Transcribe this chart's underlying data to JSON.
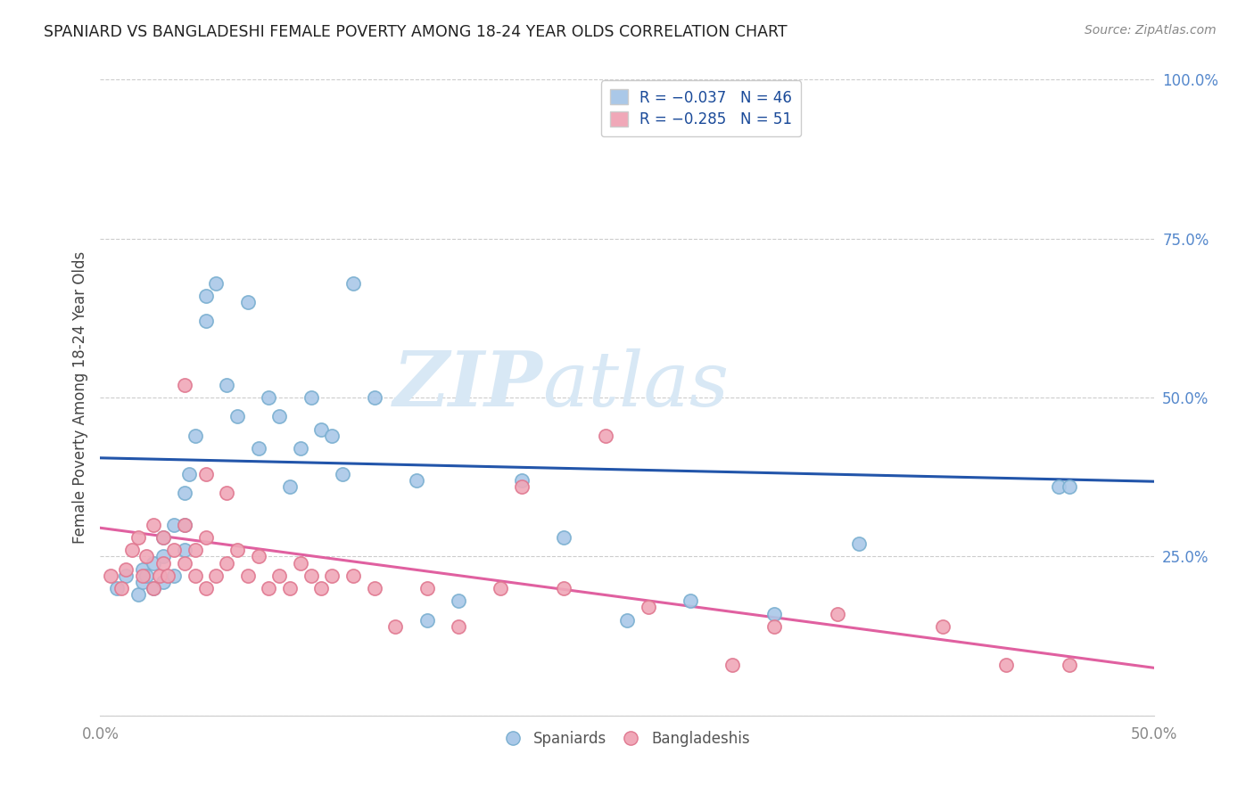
{
  "title": "SPANIARD VS BANGLADESHI FEMALE POVERTY AMONG 18-24 YEAR OLDS CORRELATION CHART",
  "source": "Source: ZipAtlas.com",
  "ylabel": "Female Poverty Among 18-24 Year Olds",
  "xlim": [
    0.0,
    0.5
  ],
  "ylim": [
    0.0,
    1.0
  ],
  "spaniard_color": "#aac8e8",
  "spaniard_edge_color": "#7aafd0",
  "bangladeshi_color": "#f0a8b8",
  "bangladeshi_edge_color": "#e07890",
  "spaniard_line_color": "#2255aa",
  "bangladeshi_line_color": "#e060a0",
  "watermark_color": "#d8e8f5",
  "spaniard_line_start": 0.405,
  "spaniard_line_end": 0.368,
  "bangladeshi_line_start": 0.295,
  "bangladeshi_line_end": 0.075,
  "spaniard_x": [
    0.008,
    0.012,
    0.018,
    0.02,
    0.02,
    0.022,
    0.025,
    0.025,
    0.03,
    0.03,
    0.03,
    0.035,
    0.035,
    0.04,
    0.04,
    0.04,
    0.042,
    0.045,
    0.05,
    0.05,
    0.055,
    0.06,
    0.065,
    0.07,
    0.075,
    0.08,
    0.085,
    0.09,
    0.095,
    0.1,
    0.105,
    0.11,
    0.115,
    0.12,
    0.13,
    0.15,
    0.155,
    0.17,
    0.2,
    0.22,
    0.25,
    0.28,
    0.32,
    0.36,
    0.455,
    0.46
  ],
  "spaniard_y": [
    0.2,
    0.22,
    0.19,
    0.21,
    0.23,
    0.22,
    0.2,
    0.24,
    0.21,
    0.25,
    0.28,
    0.22,
    0.3,
    0.26,
    0.3,
    0.35,
    0.38,
    0.44,
    0.62,
    0.66,
    0.68,
    0.52,
    0.47,
    0.65,
    0.42,
    0.5,
    0.47,
    0.36,
    0.42,
    0.5,
    0.45,
    0.44,
    0.38,
    0.68,
    0.5,
    0.37,
    0.15,
    0.18,
    0.37,
    0.28,
    0.15,
    0.18,
    0.16,
    0.27,
    0.36,
    0.36
  ],
  "bangladeshi_x": [
    0.005,
    0.01,
    0.012,
    0.015,
    0.018,
    0.02,
    0.022,
    0.025,
    0.025,
    0.028,
    0.03,
    0.03,
    0.032,
    0.035,
    0.04,
    0.04,
    0.045,
    0.045,
    0.05,
    0.05,
    0.055,
    0.06,
    0.065,
    0.07,
    0.075,
    0.08,
    0.085,
    0.09,
    0.095,
    0.1,
    0.105,
    0.11,
    0.12,
    0.13,
    0.14,
    0.155,
    0.17,
    0.19,
    0.2,
    0.22,
    0.24,
    0.26,
    0.3,
    0.32,
    0.35,
    0.4,
    0.43,
    0.46,
    0.04,
    0.05,
    0.06
  ],
  "bangladeshi_y": [
    0.22,
    0.2,
    0.23,
    0.26,
    0.28,
    0.22,
    0.25,
    0.2,
    0.3,
    0.22,
    0.24,
    0.28,
    0.22,
    0.26,
    0.24,
    0.3,
    0.22,
    0.26,
    0.2,
    0.28,
    0.22,
    0.24,
    0.26,
    0.22,
    0.25,
    0.2,
    0.22,
    0.2,
    0.24,
    0.22,
    0.2,
    0.22,
    0.22,
    0.2,
    0.14,
    0.2,
    0.14,
    0.2,
    0.36,
    0.2,
    0.44,
    0.17,
    0.08,
    0.14,
    0.16,
    0.14,
    0.08,
    0.08,
    0.52,
    0.38,
    0.35
  ]
}
